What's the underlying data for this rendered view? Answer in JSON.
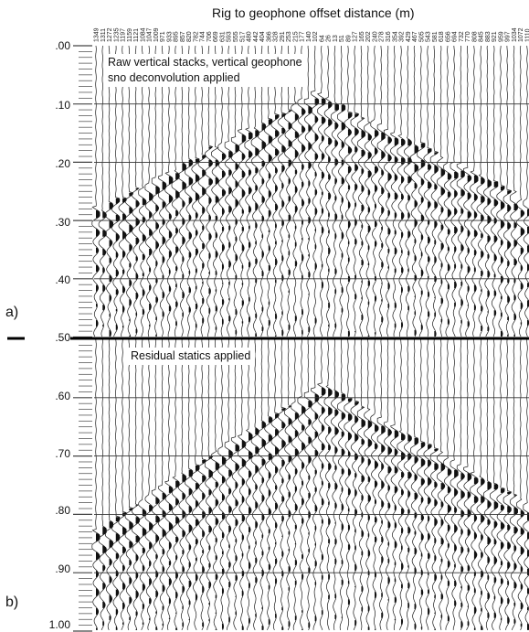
{
  "header": {
    "title": "Rig to geophone offset distance (m)"
  },
  "offsets": [
    "1349",
    "1311",
    "1272",
    "1235",
    "1197",
    "1159",
    "1121",
    "1084",
    "1047",
    "1009",
    "971",
    "933",
    "895",
    "857",
    "820",
    "782",
    "744",
    "706",
    "669",
    "631",
    "593",
    "555",
    "517",
    "480",
    "442",
    "404",
    "366",
    "328",
    "291",
    "253",
    "215",
    "177",
    "140",
    "102",
    "64",
    "26",
    "13",
    "51",
    "89",
    "127",
    "165",
    "202",
    "240",
    "278",
    "316",
    "354",
    "392",
    "429",
    "467",
    "505",
    "543",
    "581",
    "618",
    "656",
    "694",
    "732",
    "770",
    "808",
    "845",
    "883",
    "921",
    "959",
    "997",
    "1034",
    "1072",
    "1110"
  ],
  "time_labels": [
    ".00",
    ".10",
    ".20",
    ".30",
    ".40",
    ".50",
    ".60",
    ".70",
    ".80",
    ".90",
    "1.00"
  ],
  "panels": [
    {
      "letter": "a)",
      "annotation_line1": "Raw vertical stacks, vertical geophone",
      "annotation_line2": "sno deconvolution applied"
    },
    {
      "letter": "b)",
      "annotation_line1": "Residual statics applied",
      "annotation_line2": ""
    }
  ]
}
